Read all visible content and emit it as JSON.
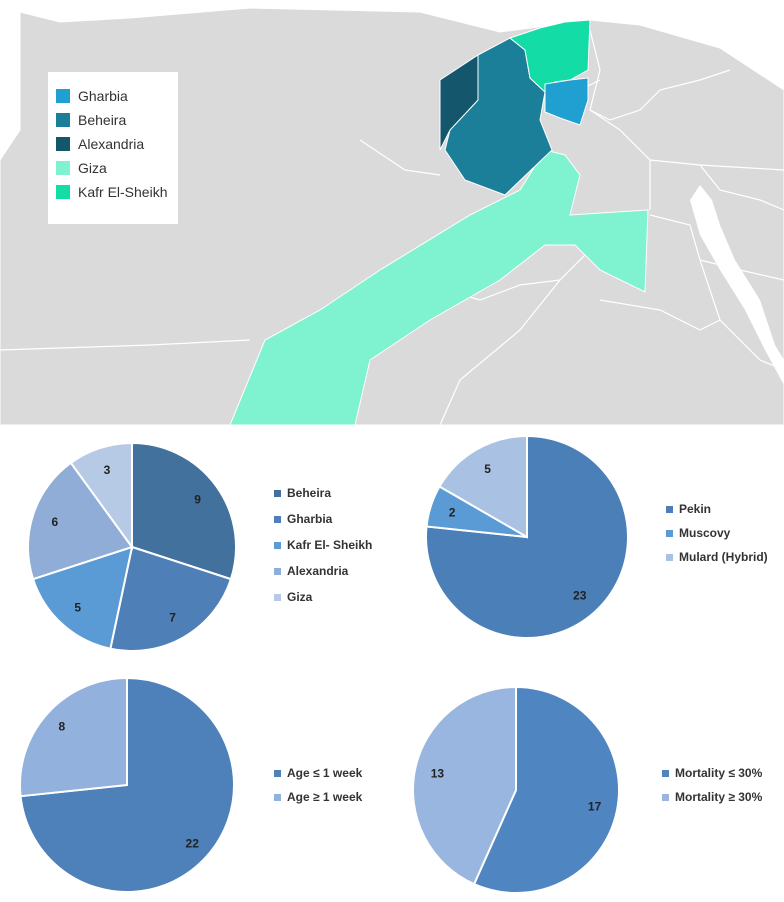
{
  "map": {
    "legend": [
      {
        "label": "Gharbia",
        "color": "#1fa0d0"
      },
      {
        "label": "Beheira",
        "color": "#1c7f99"
      },
      {
        "label": "Alexandria",
        "color": "#14566b"
      },
      {
        "label": "Giza",
        "color": "#7ff2cf"
      },
      {
        "label": "Kafr El-Sheikh",
        "color": "#14dca6"
      }
    ],
    "base_color": "#dadada"
  },
  "chart_data": [
    {
      "type": "pie",
      "labels": [
        "Beheira",
        "Gharbia",
        "Kafr El- Sheikh",
        "Alexandria",
        "Giza"
      ],
      "values": [
        9,
        7,
        5,
        6,
        3
      ],
      "colors": [
        "#41719c",
        "#4e7fb7",
        "#5b9bd5",
        "#8fadd7",
        "#b6c9e5"
      ],
      "legend": "right"
    },
    {
      "type": "pie",
      "labels": [
        "Pekin",
        "Muscovy",
        "Mulard (Hybrid)"
      ],
      "values": [
        23,
        2,
        5
      ],
      "colors": [
        "#4a7fb7",
        "#5b9bd5",
        "#a9c1e2"
      ],
      "legend": "right"
    },
    {
      "type": "pie",
      "labels": [
        "Age ≤ 1 week",
        "Age ≥ 1 week"
      ],
      "values": [
        22,
        8
      ],
      "colors": [
        "#4e81b9",
        "#92b1dc"
      ],
      "legend": "right"
    },
    {
      "type": "pie",
      "labels": [
        "Mortality ≤ 30%",
        "Mortality ≥ 30%"
      ],
      "values": [
        17,
        13
      ],
      "colors": [
        "#4f86c1",
        "#98b6df"
      ],
      "legend": "right"
    }
  ]
}
